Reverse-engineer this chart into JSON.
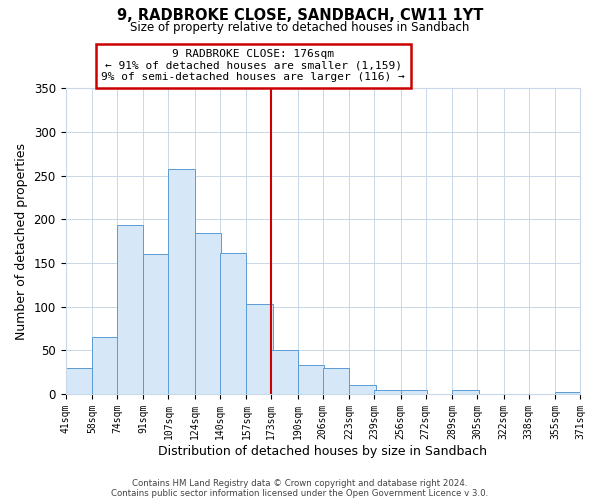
{
  "title": "9, RADBROKE CLOSE, SANDBACH, CW11 1YT",
  "subtitle": "Size of property relative to detached houses in Sandbach",
  "xlabel": "Distribution of detached houses by size in Sandbach",
  "ylabel": "Number of detached properties",
  "bar_color": "#d6e8f7",
  "bar_edge_color": "#5b9bd5",
  "bg_color": "#ffffff",
  "grid_color": "#c8d8e8",
  "vline_x": 173,
  "vline_color": "#cc0000",
  "bins_left": [
    41,
    58,
    74,
    91,
    107,
    124,
    140,
    157,
    173,
    190,
    206,
    223,
    239,
    256,
    272,
    289,
    305,
    322,
    338,
    355
  ],
  "bin_width": 17,
  "counts": [
    30,
    65,
    193,
    160,
    258,
    184,
    162,
    103,
    50,
    33,
    30,
    10,
    5,
    5,
    0,
    5,
    0,
    0,
    0,
    2
  ],
  "xlim_left": 41,
  "xlim_right": 371,
  "ylim_top": 350,
  "yticks": [
    0,
    50,
    100,
    150,
    200,
    250,
    300,
    350
  ],
  "tick_labels": [
    "41sqm",
    "58sqm",
    "74sqm",
    "91sqm",
    "107sqm",
    "124sqm",
    "140sqm",
    "157sqm",
    "173sqm",
    "190sqm",
    "206sqm",
    "223sqm",
    "239sqm",
    "256sqm",
    "272sqm",
    "289sqm",
    "305sqm",
    "322sqm",
    "338sqm",
    "355sqm",
    "371sqm"
  ],
  "tick_positions": [
    41,
    58,
    74,
    91,
    107,
    124,
    140,
    157,
    173,
    190,
    206,
    223,
    239,
    256,
    272,
    289,
    305,
    322,
    338,
    355,
    371
  ],
  "annotation_title": "9 RADBROKE CLOSE: 176sqm",
  "annotation_line1": "← 91% of detached houses are smaller (1,159)",
  "annotation_line2": "9% of semi-detached houses are larger (116) →",
  "annotation_box_color": "#ffffff",
  "annotation_box_edge": "#cc0000",
  "footer1": "Contains HM Land Registry data © Crown copyright and database right 2024.",
  "footer2": "Contains public sector information licensed under the Open Government Licence v 3.0."
}
